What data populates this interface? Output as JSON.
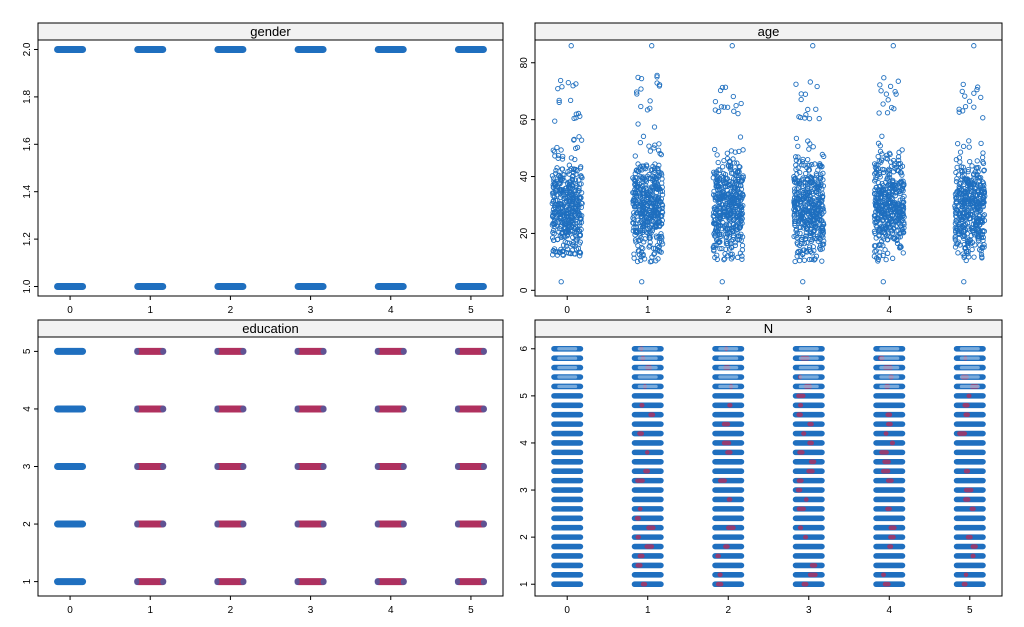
{
  "colors": {
    "blue": "#1f6fbf",
    "crimson": "#b0305e",
    "strip": "#f2f2f2",
    "axis": "#000000"
  },
  "chart_data": [
    {
      "type": "scatter",
      "title": "gender",
      "x_ticks": [
        "0",
        "1",
        "2",
        "3",
        "4",
        "5"
      ],
      "y_ticks": [
        "1.0",
        "1.2",
        "1.4",
        "1.6",
        "1.8",
        "2.0"
      ],
      "xlim": [
        -0.4,
        5.4
      ],
      "ylim": [
        0.96,
        2.04
      ],
      "levels": [
        1,
        2
      ],
      "series": [
        {
          "x": 0,
          "level_counts": {
            "1": 1,
            "2": 1
          }
        },
        {
          "x": 1,
          "level_counts": {
            "1": 1,
            "2": 1
          }
        },
        {
          "x": 2,
          "level_counts": {
            "1": 1,
            "2": 1
          }
        },
        {
          "x": 3,
          "level_counts": {
            "1": 1,
            "2": 1
          }
        },
        {
          "x": 4,
          "level_counts": {
            "1": 1,
            "2": 1
          }
        },
        {
          "x": 5,
          "level_counts": {
            "1": 1,
            "2": 1
          }
        }
      ]
    },
    {
      "type": "scatter",
      "title": "age",
      "x_ticks": [
        "0",
        "1",
        "2",
        "3",
        "4",
        "5"
      ],
      "y_ticks": [
        "0",
        "20",
        "40",
        "60",
        "80"
      ],
      "xlim": [
        -0.4,
        5.4
      ],
      "ylim": [
        -2,
        88
      ],
      "distribution": [
        {
          "x": 0,
          "min": 3,
          "typical_low": 12,
          "typical_high": 60,
          "max": 86
        },
        {
          "x": 1,
          "min": 3,
          "typical_low": 10,
          "typical_high": 62,
          "max": 86
        },
        {
          "x": 2,
          "min": 3,
          "typical_low": 10,
          "typical_high": 62,
          "max": 86
        },
        {
          "x": 3,
          "min": 3,
          "typical_low": 10,
          "typical_high": 60,
          "max": 86
        },
        {
          "x": 4,
          "min": 3,
          "typical_low": 10,
          "typical_high": 62,
          "max": 86
        },
        {
          "x": 5,
          "min": 3,
          "typical_low": 10,
          "typical_high": 60,
          "max": 86
        }
      ]
    },
    {
      "type": "scatter",
      "title": "education",
      "x_ticks": [
        "0",
        "1",
        "2",
        "3",
        "4",
        "5"
      ],
      "y_ticks": [
        "1",
        "2",
        "3",
        "4",
        "5"
      ],
      "xlim": [
        -0.4,
        5.4
      ],
      "ylim": [
        0.75,
        5.25
      ],
      "levels": [
        1,
        2,
        3,
        4,
        5
      ],
      "cluster_colors": [
        [
          "blue",
          "blue",
          "blue",
          "blue",
          "blue"
        ],
        [
          "crimson",
          "crimson",
          "crimson",
          "crimson",
          "crimson"
        ],
        [
          "crimson",
          "crimson",
          "crimson",
          "crimson",
          "crimson"
        ],
        [
          "crimson",
          "crimson",
          "crimson",
          "crimson",
          "crimson"
        ],
        [
          "crimson",
          "crimson",
          "crimson",
          "crimson",
          "crimson"
        ],
        [
          "crimson",
          "crimson",
          "crimson",
          "crimson",
          "crimson"
        ]
      ]
    },
    {
      "type": "scatter",
      "title": "N",
      "x_ticks": [
        "0",
        "1",
        "2",
        "3",
        "4",
        "5"
      ],
      "y_ticks": [
        "1",
        "2",
        "3",
        "4",
        "5",
        "6"
      ],
      "xlim": [
        -0.4,
        5.4
      ],
      "ylim": [
        0.75,
        6.25
      ],
      "levels_from": 1,
      "levels_to": 6,
      "level_step": 0.2
    }
  ]
}
